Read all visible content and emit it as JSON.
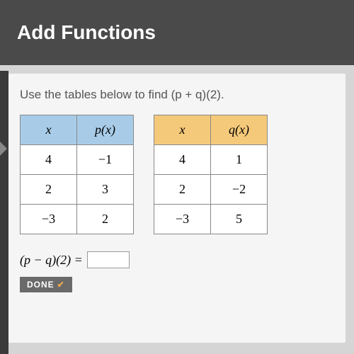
{
  "header": {
    "title": "Add Functions"
  },
  "instruction": "Use the tables below to find (p + q)(2).",
  "table_p": {
    "header_color": "#a8cce8",
    "col1_header": "x",
    "col2_header": "p(x)",
    "rows": [
      {
        "x": "4",
        "y": "−1"
      },
      {
        "x": "2",
        "y": "3"
      },
      {
        "x": "−3",
        "y": "2"
      }
    ]
  },
  "table_q": {
    "header_color": "#f5c97a",
    "col1_header": "x",
    "col2_header": "q(x)",
    "rows": [
      {
        "x": "4",
        "y": "1"
      },
      {
        "x": "2",
        "y": "−2"
      },
      {
        "x": "−3",
        "y": "5"
      }
    ]
  },
  "equation": {
    "label": "(p − q)(2) =",
    "value": ""
  },
  "done": {
    "label": "DONE"
  }
}
